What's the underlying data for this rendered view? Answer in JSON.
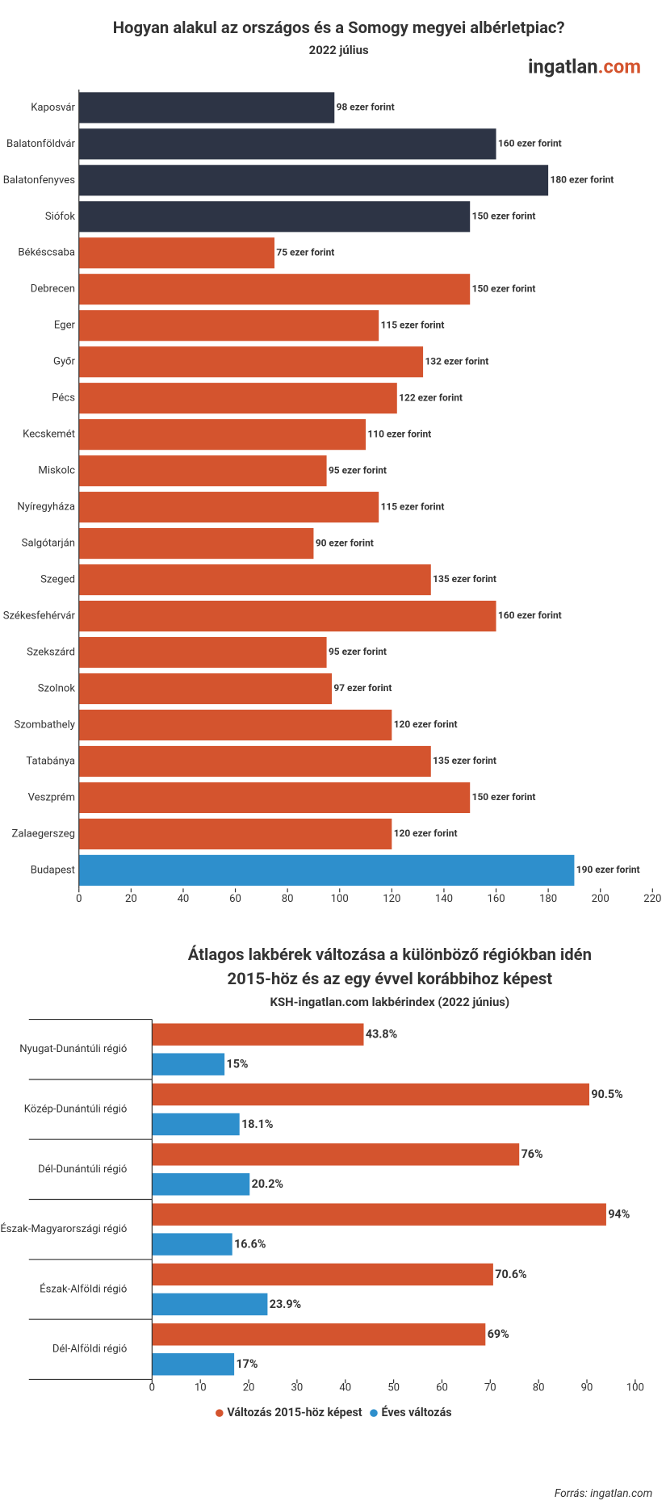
{
  "logo": {
    "name": "ingatlan",
    "suffix": ".com"
  },
  "source": "Forrás: ingatlan.com",
  "chart_data": [
    {
      "type": "bar",
      "orientation": "horizontal",
      "title": "Hogyan alakul az országos és a Somogy megyei albérletpiac?",
      "subtitle": "2022 július",
      "categories": [
        "Kaposvár",
        "Balatonföldvár",
        "Balatonfenyves",
        "Siófok",
        "Békéscsaba",
        "Debrecen",
        "Eger",
        "Győr",
        "Pécs",
        "Kecskemét",
        "Miskolc",
        "Nyíregyháza",
        "Salgótarján",
        "Szeged",
        "Székesfehérvár",
        "Szekszárd",
        "Szolnok",
        "Szombathely",
        "Tatabánya",
        "Veszprém",
        "Zalaegerszeg",
        "Budapest"
      ],
      "values": [
        98,
        160,
        180,
        150,
        75,
        150,
        115,
        132,
        122,
        110,
        95,
        115,
        90,
        135,
        160,
        95,
        97,
        120,
        135,
        150,
        120,
        190
      ],
      "value_labels": [
        "98 ezer forint",
        "160 ezer forint",
        "180 ezer forint",
        "150 ezer forint",
        "75 ezer forint",
        "150 ezer forint",
        "115 ezer forint",
        "132 ezer forint",
        "122 ezer forint",
        "110 ezer forint",
        "95 ezer forint",
        "115 ezer forint",
        "90 ezer forint",
        "135 ezer forint",
        "160 ezer forint",
        "95 ezer forint",
        "97 ezer forint",
        "120 ezer forint",
        "135 ezer forint",
        "150 ezer forint",
        "120 ezer forint",
        "190 ezer forint"
      ],
      "colors": [
        "#2d3445",
        "#2d3445",
        "#2d3445",
        "#2d3445",
        "#d4542e",
        "#d4542e",
        "#d4542e",
        "#d4542e",
        "#d4542e",
        "#d4542e",
        "#d4542e",
        "#d4542e",
        "#d4542e",
        "#d4542e",
        "#d4542e",
        "#d4542e",
        "#d4542e",
        "#d4542e",
        "#d4542e",
        "#d4542e",
        "#d4542e",
        "#2e8fcc"
      ],
      "xlim": [
        0,
        220
      ],
      "xticks": [
        0,
        20,
        40,
        60,
        80,
        100,
        120,
        140,
        160,
        180,
        200,
        220
      ]
    },
    {
      "type": "grouped-bar",
      "orientation": "horizontal",
      "title": [
        "Átlagos lakbérek változása a különböző régiókban idén",
        "2015-höz és az egy évvel korábbihoz képest"
      ],
      "subtitle": "KSH-ingatlan.com lakbérindex (2022 június)",
      "categories": [
        "Nyugat-Dunántúli régió",
        "Közép-Dunántúli régió",
        "Dél-Dunántúli régió",
        "Észak-Magyarországi régió",
        "Észak-Alföldi régió",
        "Dél-Alföldi régió"
      ],
      "series": [
        {
          "name": "Változás 2015-höz képest",
          "color": "#d4542e",
          "values": [
            43.8,
            90.5,
            76,
            94,
            70.6,
            69
          ],
          "value_labels": [
            "43.8%",
            "90.5%",
            "76%",
            "94%",
            "70.6%",
            "69%"
          ]
        },
        {
          "name": "Éves változás",
          "color": "#2e8fcc",
          "values": [
            15,
            18.1,
            20.2,
            16.6,
            23.9,
            17
          ],
          "value_labels": [
            "15%",
            "18.1%",
            "20.2%",
            "16.6%",
            "23.9%",
            "17%"
          ]
        }
      ],
      "xlim": [
        0,
        100
      ],
      "xticks": [
        0,
        10,
        20,
        30,
        40,
        50,
        60,
        70,
        80,
        90,
        100
      ],
      "legend": "bottom"
    }
  ]
}
